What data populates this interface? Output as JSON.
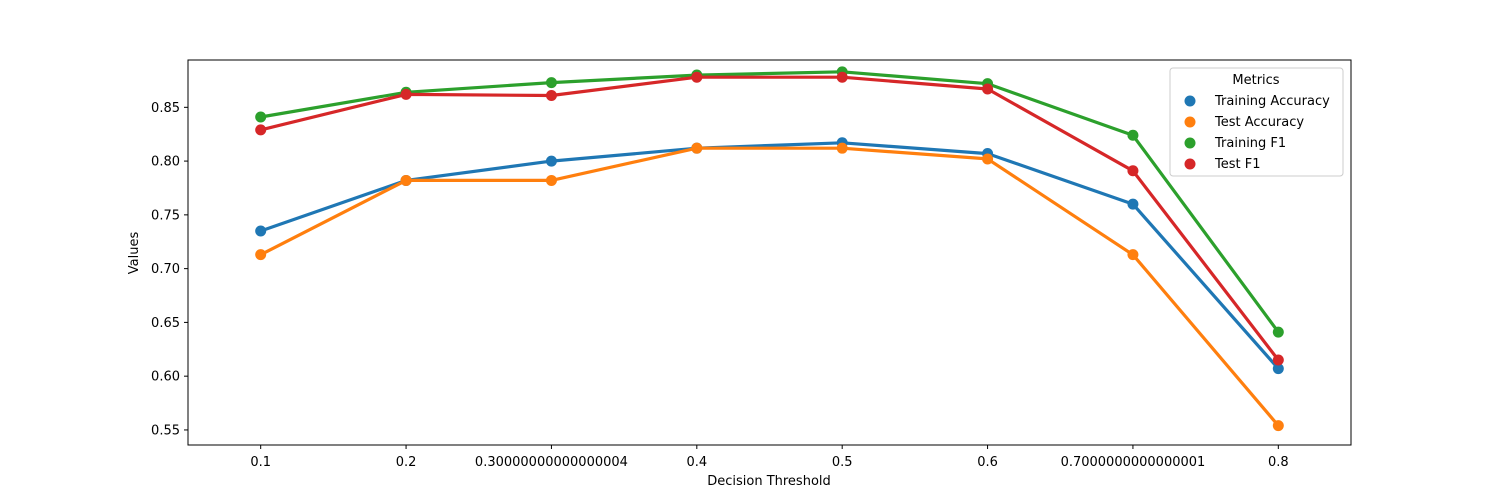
{
  "chart_data": {
    "type": "line",
    "title": "",
    "xlabel": "Decision Threshold",
    "ylabel": "Values",
    "categories": [
      "0.1",
      "0.2",
      "0.30000000000000004",
      "0.4",
      "0.5",
      "0.6",
      "0.7000000000000001",
      "0.8"
    ],
    "yticks": [
      0.55,
      0.6,
      0.65,
      0.7,
      0.75,
      0.8,
      0.85
    ],
    "ytick_labels": [
      "0.55",
      "0.60",
      "0.65",
      "0.70",
      "0.75",
      "0.80",
      "0.85"
    ],
    "ylim": [
      0.536,
      0.894
    ],
    "grid": false,
    "legend": {
      "title": "Metrics",
      "placement": "top-right"
    },
    "series": [
      {
        "name": "Training Accuracy",
        "color": "#1f77b4",
        "values": [
          0.735,
          0.782,
          0.8,
          0.812,
          0.817,
          0.807,
          0.76,
          0.607
        ]
      },
      {
        "name": "Test Accuracy",
        "color": "#ff7f0e",
        "values": [
          0.713,
          0.782,
          0.782,
          0.812,
          0.812,
          0.802,
          0.713,
          0.554
        ]
      },
      {
        "name": "Training F1",
        "color": "#2ca02c",
        "values": [
          0.841,
          0.864,
          0.873,
          0.88,
          0.883,
          0.872,
          0.824,
          0.641
        ]
      },
      {
        "name": "Test F1",
        "color": "#d62728",
        "values": [
          0.829,
          0.862,
          0.861,
          0.878,
          0.878,
          0.867,
          0.791,
          0.615
        ]
      }
    ]
  }
}
